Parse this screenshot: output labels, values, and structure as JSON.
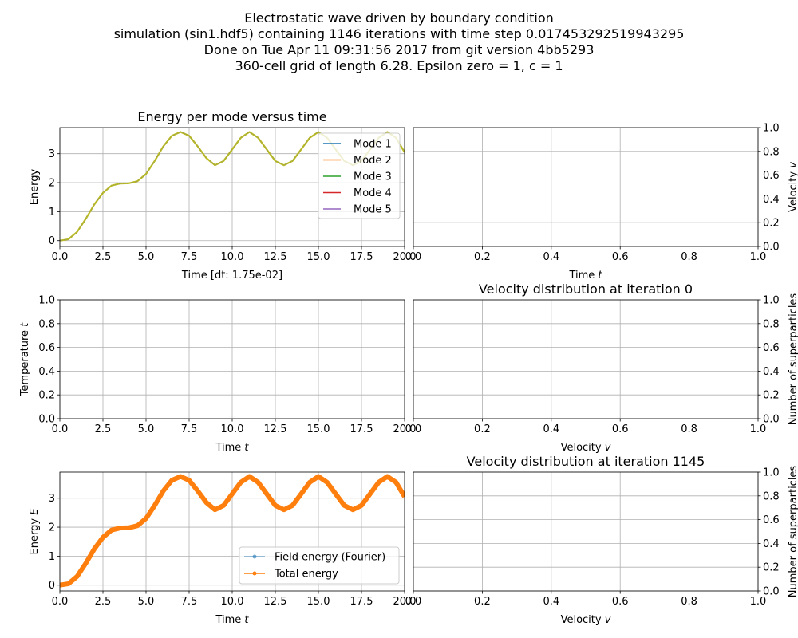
{
  "suptitle": [
    "Electrostatic wave driven by boundary condition",
    "simulation (sin1.hdf5) containing 1146 iterations with time step 0.017453292519943295",
    "Done on Tue Apr 11 09:31:56 2017 from git version 4bb5293",
    "360-cell grid of length 6.28. Epsilon zero = 1, c = 1"
  ],
  "colors": {
    "mode1": "#1f77b4",
    "mode2": "#ff7f0e",
    "mode3": "#2ca02c",
    "mode4": "#d62728",
    "mode5": "#9467bd",
    "grid": "#b0b0b0"
  },
  "chart_data": [
    {
      "id": "energy-per-mode",
      "type": "line",
      "title": "Energy per mode versus time",
      "xlabel": "Time [dt: 1.75e-02]",
      "ylabel": "Energy",
      "xlim": [
        0,
        20
      ],
      "ylim": [
        -0.2,
        3.9
      ],
      "xticks": [
        "0.0",
        "2.5",
        "5.0",
        "7.5",
        "10.0",
        "12.5",
        "15.0",
        "17.5",
        "20.0"
      ],
      "yticks": [
        "0",
        "1",
        "2",
        "3"
      ],
      "grid": true,
      "legend_position": "upper right",
      "x": [
        0,
        0.5,
        1,
        1.5,
        2,
        2.5,
        3,
        3.5,
        4,
        4.5,
        5,
        5.5,
        6,
        6.5,
        7,
        7.5,
        8,
        8.5,
        9,
        9.5,
        10,
        10.5,
        11,
        11.5,
        12,
        12.5,
        13,
        13.5,
        14,
        14.5,
        15,
        15.5,
        16,
        16.5,
        17,
        17.5,
        18,
        18.5,
        19,
        19.5,
        20
      ],
      "series": [
        {
          "name": "Mode 1",
          "values": [
            0,
            0.05,
            0.3,
            0.75,
            1.25,
            1.65,
            1.9,
            1.97,
            1.98,
            2.05,
            2.3,
            2.75,
            3.25,
            3.62,
            3.75,
            3.62,
            3.25,
            2.85,
            2.6,
            2.75,
            3.15,
            3.55,
            3.75,
            3.55,
            3.15,
            2.75,
            2.6,
            2.75,
            3.15,
            3.55,
            3.75,
            3.55,
            3.15,
            2.75,
            2.6,
            2.75,
            3.15,
            3.55,
            3.75,
            3.55,
            3.05
          ]
        },
        {
          "name": "Mode 2",
          "values": [
            0,
            0.05,
            0.3,
            0.75,
            1.25,
            1.65,
            1.9,
            1.97,
            1.98,
            2.05,
            2.3,
            2.75,
            3.25,
            3.62,
            3.75,
            3.62,
            3.25,
            2.85,
            2.6,
            2.75,
            3.15,
            3.55,
            3.75,
            3.55,
            3.15,
            2.75,
            2.6,
            2.75,
            3.15,
            3.55,
            3.75,
            3.55,
            3.15,
            2.75,
            2.6,
            2.75,
            3.15,
            3.55,
            3.75,
            3.55,
            3.05
          ]
        },
        {
          "name": "Mode 3",
          "values": [
            0,
            0.05,
            0.3,
            0.75,
            1.25,
            1.65,
            1.9,
            1.97,
            1.98,
            2.05,
            2.3,
            2.75,
            3.25,
            3.62,
            3.75,
            3.62,
            3.25,
            2.85,
            2.6,
            2.75,
            3.15,
            3.55,
            3.75,
            3.55,
            3.15,
            2.75,
            2.6,
            2.75,
            3.15,
            3.55,
            3.75,
            3.55,
            3.15,
            2.75,
            2.6,
            2.75,
            3.15,
            3.55,
            3.75,
            3.55,
            3.05
          ]
        },
        {
          "name": "Mode 4",
          "values": [
            0,
            0.05,
            0.3,
            0.75,
            1.25,
            1.65,
            1.9,
            1.97,
            1.98,
            2.05,
            2.3,
            2.75,
            3.25,
            3.62,
            3.75,
            3.62,
            3.25,
            2.85,
            2.6,
            2.75,
            3.15,
            3.55,
            3.75,
            3.55,
            3.15,
            2.75,
            2.6,
            2.75,
            3.15,
            3.55,
            3.75,
            3.55,
            3.15,
            2.75,
            2.6,
            2.75,
            3.15,
            3.55,
            3.75,
            3.55,
            3.05
          ]
        },
        {
          "name": "Mode 5",
          "values": [
            0,
            0.05,
            0.3,
            0.75,
            1.25,
            1.65,
            1.9,
            1.97,
            1.98,
            2.05,
            2.3,
            2.75,
            3.25,
            3.62,
            3.75,
            3.62,
            3.25,
            2.85,
            2.6,
            2.75,
            3.15,
            3.55,
            3.75,
            3.55,
            3.15,
            2.75,
            2.6,
            2.75,
            3.15,
            3.55,
            3.75,
            3.55,
            3.15,
            2.75,
            2.6,
            2.75,
            3.15,
            3.55,
            3.75,
            3.55,
            3.05
          ]
        }
      ]
    },
    {
      "id": "velocity-vs-time",
      "type": "line",
      "title": "",
      "xlabel": "Time t",
      "ylabel": "Velocity v",
      "ylabel_side": "right",
      "xlim": [
        0,
        1
      ],
      "ylim": [
        0,
        1
      ],
      "xticks": [
        "0.0",
        "0.2",
        "0.4",
        "0.6",
        "0.8",
        "1.0"
      ],
      "yticks": [
        "0.0",
        "0.2",
        "0.4",
        "0.6",
        "0.8",
        "1.0"
      ],
      "grid": true,
      "series": []
    },
    {
      "id": "temperature-vs-time",
      "type": "line",
      "title": "",
      "xlabel": "Time t",
      "ylabel": "Temperature t",
      "xlim": [
        0,
        20
      ],
      "ylim": [
        0,
        1
      ],
      "xticks": [
        "0.0",
        "2.5",
        "5.0",
        "7.5",
        "10.0",
        "12.5",
        "15.0",
        "17.5",
        "20.0"
      ],
      "yticks": [
        "0.0",
        "0.2",
        "0.4",
        "0.6",
        "0.8",
        "1.0"
      ],
      "grid": true,
      "series": []
    },
    {
      "id": "velocity-distribution-0",
      "type": "bar",
      "title": "Velocity distribution at iteration 0",
      "xlabel": "Velocity v",
      "ylabel": "Number of superparticles",
      "ylabel_side": "right",
      "xlim": [
        0,
        1
      ],
      "ylim": [
        0,
        1
      ],
      "xticks": [
        "0.0",
        "0.2",
        "0.4",
        "0.6",
        "0.8",
        "1.0"
      ],
      "yticks": [
        "0.0",
        "0.2",
        "0.4",
        "0.6",
        "0.8",
        "1.0"
      ],
      "grid": true,
      "series": []
    },
    {
      "id": "energy-vs-time",
      "type": "line",
      "title": "",
      "xlabel": "Time t",
      "ylabel": "Energy E",
      "xlim": [
        0,
        20
      ],
      "ylim": [
        -0.2,
        3.9
      ],
      "xticks": [
        "0.0",
        "2.5",
        "5.0",
        "7.5",
        "10.0",
        "12.5",
        "15.0",
        "17.5",
        "20.0"
      ],
      "yticks": [
        "0",
        "1",
        "2",
        "3"
      ],
      "grid": true,
      "legend_position": "lower right",
      "x": [
        0,
        0.5,
        1,
        1.5,
        2,
        2.5,
        3,
        3.5,
        4,
        4.5,
        5,
        5.5,
        6,
        6.5,
        7,
        7.5,
        8,
        8.5,
        9,
        9.5,
        10,
        10.5,
        11,
        11.5,
        12,
        12.5,
        13,
        13.5,
        14,
        14.5,
        15,
        15.5,
        16,
        16.5,
        17,
        17.5,
        18,
        18.5,
        19,
        19.5,
        20
      ],
      "series": [
        {
          "name": "Field energy (Fourier)",
          "values": [
            0,
            0.05,
            0.3,
            0.75,
            1.25,
            1.65,
            1.9,
            1.97,
            1.98,
            2.05,
            2.3,
            2.75,
            3.25,
            3.62,
            3.75,
            3.62,
            3.25,
            2.85,
            2.6,
            2.75,
            3.15,
            3.55,
            3.75,
            3.55,
            3.15,
            2.75,
            2.6,
            2.75,
            3.15,
            3.55,
            3.75,
            3.55,
            3.15,
            2.75,
            2.6,
            2.75,
            3.15,
            3.55,
            3.75,
            3.55,
            3.05
          ]
        },
        {
          "name": "Total energy",
          "values": [
            0,
            0.05,
            0.3,
            0.75,
            1.25,
            1.65,
            1.9,
            1.97,
            1.98,
            2.05,
            2.3,
            2.75,
            3.25,
            3.62,
            3.75,
            3.62,
            3.25,
            2.85,
            2.6,
            2.75,
            3.15,
            3.55,
            3.75,
            3.55,
            3.15,
            2.75,
            2.6,
            2.75,
            3.15,
            3.55,
            3.75,
            3.55,
            3.15,
            2.75,
            2.6,
            2.75,
            3.15,
            3.55,
            3.75,
            3.55,
            3.05
          ]
        }
      ]
    },
    {
      "id": "velocity-distribution-1145",
      "type": "bar",
      "title": "Velocity distribution at iteration 1145",
      "xlabel": "Velocity v",
      "ylabel": "Number of superparticles",
      "ylabel_side": "right",
      "xlim": [
        0,
        1
      ],
      "ylim": [
        0,
        1
      ],
      "xticks": [
        "0.0",
        "0.2",
        "0.4",
        "0.6",
        "0.8",
        "1.0"
      ],
      "yticks": [
        "0.0",
        "0.2",
        "0.4",
        "0.6",
        "0.8",
        "1.0"
      ],
      "grid": true,
      "series": []
    }
  ]
}
